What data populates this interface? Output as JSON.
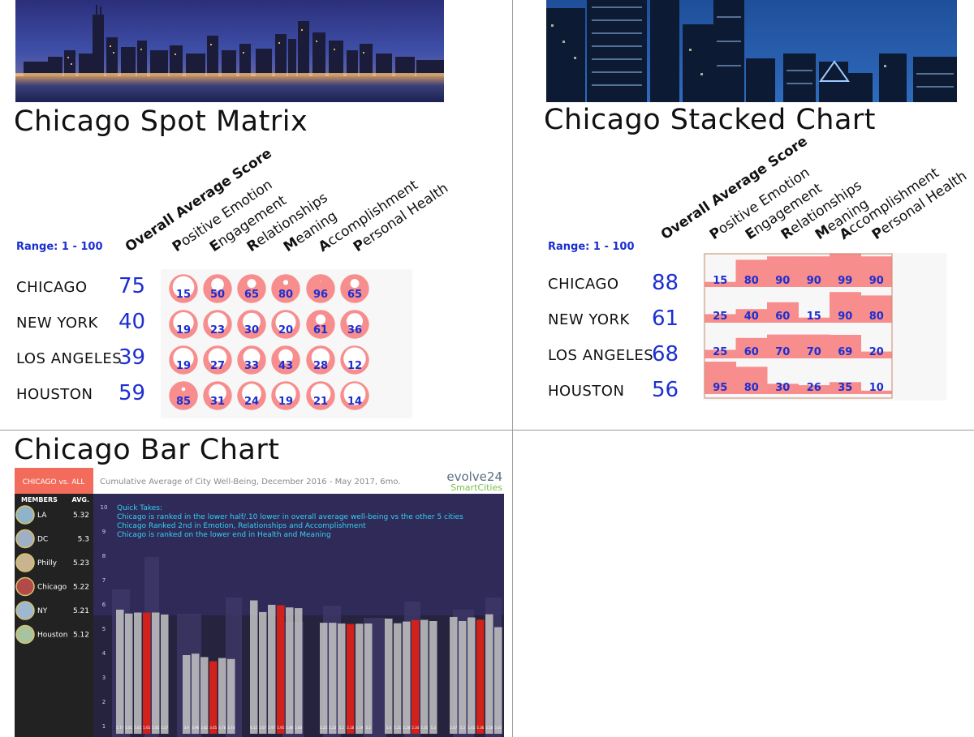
{
  "spot_matrix": {
    "title": "Chicago Spot Matrix",
    "range_label": "Range: 1 - 100"
  },
  "stacked_chart": {
    "title": "Chicago Stacked Chart",
    "range_label": "Range: 1 - 100"
  },
  "bar_chart_panel": {
    "title": "Chicago Bar Chart",
    "sidebar_header": "CHICAGO vs. ALL",
    "col_members": "MEMBERS",
    "col_avg": "AVG.",
    "members": [
      {
        "name": "LA",
        "avg": "5.32"
      },
      {
        "name": "DC",
        "avg": "5.3"
      },
      {
        "name": "Philly",
        "avg": "5.23"
      },
      {
        "name": "Chicago",
        "avg": "5.22"
      },
      {
        "name": "NY",
        "avg": "5.21"
      },
      {
        "name": "Houston",
        "avg": "5.12"
      }
    ],
    "subtitle": "Cumulative Average of City Well-Being, December 2016 - May 2017, 6mo.",
    "logo_top": "evolve24",
    "logo_bottom": "SmartCities",
    "quick_takes": [
      "Quick Takes:",
      "Chicago is ranked in the lower half/.10 lower in overall average well-being vs the other 5 cities",
      "Chicago Ranked 2nd in Emotion, Relationships and Accomplishment",
      "Chicago is ranked on the lower end in Health and Meaning"
    ]
  },
  "colors": {
    "accent_blue": "#1c2fd1",
    "spot_pink": "#f78d8d",
    "bar_red": "#d0211b",
    "bar_gray": "#c4c4c4",
    "sidebar_header": "#f26b5b",
    "sidebar_bg": "#222222"
  },
  "chart_data": [
    {
      "type": "heatmap",
      "title": "Chicago Spot Matrix",
      "range": [
        1,
        100
      ],
      "columns": [
        "Overall Average Score",
        "Positive Emotion",
        "Engagement",
        "Relationships",
        "Meaning",
        "Accomplishment",
        "Personal Health"
      ],
      "rows": [
        {
          "city": "CHICAGO",
          "overall": 75,
          "values": [
            15,
            50,
            65,
            80,
            96,
            65
          ]
        },
        {
          "city": "NEW YORK",
          "overall": 40,
          "values": [
            19,
            23,
            30,
            20,
            61,
            36
          ]
        },
        {
          "city": "LOS ANGELES",
          "overall": 39,
          "values": [
            19,
            27,
            33,
            43,
            28,
            12
          ]
        },
        {
          "city": "HOUSTON",
          "overall": 59,
          "values": [
            85,
            31,
            24,
            19,
            21,
            14
          ]
        }
      ]
    },
    {
      "type": "bar",
      "title": "Chicago Stacked Chart",
      "range": [
        1,
        100
      ],
      "columns": [
        "Overall Average Score",
        "Positive Emotion",
        "Engagement",
        "Relationships",
        "Meaning",
        "Accomplishment",
        "Personal Health"
      ],
      "rows": [
        {
          "city": "CHICAGO",
          "overall": 88,
          "values": [
            15,
            80,
            90,
            90,
            99,
            90
          ]
        },
        {
          "city": "NEW YORK",
          "overall": 61,
          "values": [
            25,
            40,
            60,
            15,
            90,
            80
          ]
        },
        {
          "city": "LOS ANGELES",
          "overall": 68,
          "values": [
            25,
            60,
            70,
            70,
            69,
            20
          ]
        },
        {
          "city": "HOUSTON",
          "overall": 56,
          "values": [
            95,
            80,
            30,
            26,
            35,
            10
          ]
        }
      ]
    },
    {
      "type": "bar",
      "title": "Cumulative Average of City Well-Being, December 2016 - May 2017, 6mo.",
      "yticks": [
        "10",
        "9",
        "8",
        "7",
        "6",
        "5",
        "4",
        "3",
        "2",
        "1"
      ],
      "ylim": [
        1,
        10
      ],
      "groups": [
        {
          "values": [
            5.77,
            5.61,
            5.65,
            5.65,
            5.65,
            5.57
          ],
          "labels": [
            "5.77",
            "5.61",
            "5.65",
            "5.65",
            "5.65",
            "5.57"
          ],
          "highlight": 3
        },
        {
          "values": [
            3.9,
            3.96,
            3.82,
            3.65,
            3.78,
            3.74
          ],
          "labels": [
            "3.9",
            "3.96",
            "3.82",
            "3.65",
            "3.78",
            "3.74"
          ],
          "highlight": 3
        },
        {
          "values": [
            6.15,
            5.67,
            5.97,
            5.95,
            5.86,
            5.83
          ],
          "labels": [
            "6.15",
            "5.67",
            "5.97",
            "5.95",
            "5.86",
            "5.83"
          ],
          "highlight": 3
        },
        {
          "values": [
            5.23,
            5.23,
            5.2,
            5.18,
            5.19,
            5.2
          ],
          "labels": [
            "5.23",
            "5.23",
            "5.2",
            "5.18",
            "5.19",
            "5.2"
          ],
          "highlight": 3
        },
        {
          "values": [
            5.4,
            5.21,
            5.28,
            5.34,
            5.35,
            5.3
          ],
          "labels": [
            "5.4",
            "5.21",
            "5.28",
            "5.34",
            "5.35",
            "5.3"
          ],
          "highlight": 3
        },
        {
          "values": [
            5.47,
            5.3,
            5.45,
            5.36,
            5.58,
            5.05
          ],
          "labels": [
            "5.47",
            "5.3",
            "5.45",
            "5.36",
            "5.58",
            "5.05"
          ],
          "highlight": 3
        }
      ]
    }
  ]
}
